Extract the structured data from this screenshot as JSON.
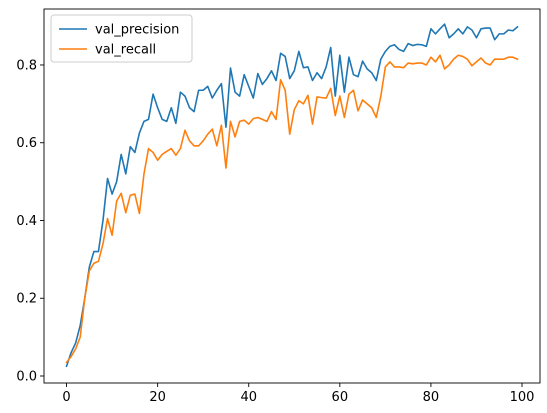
{
  "chart_data": {
    "type": "line",
    "title": "",
    "xlabel": "",
    "ylabel": "",
    "xlim": [
      -4.95,
      103.95
    ],
    "ylim": [
      -0.018,
      0.944
    ],
    "xticks": [
      0,
      20,
      40,
      60,
      80,
      100
    ],
    "yticks": [
      0.0,
      0.2,
      0.4,
      0.6,
      0.8
    ],
    "xtick_labels": [
      "0",
      "20",
      "40",
      "60",
      "80",
      "100"
    ],
    "ytick_labels": [
      "0.0",
      "0.2",
      "0.4",
      "0.6",
      "0.8"
    ],
    "grid": false,
    "legend_position": "upper-left",
    "x": [
      0,
      1,
      2,
      3,
      4,
      5,
      6,
      7,
      8,
      9,
      10,
      11,
      12,
      13,
      14,
      15,
      16,
      17,
      18,
      19,
      20,
      21,
      22,
      23,
      24,
      25,
      26,
      27,
      28,
      29,
      30,
      31,
      32,
      33,
      34,
      35,
      36,
      37,
      38,
      39,
      40,
      41,
      42,
      43,
      44,
      45,
      46,
      47,
      48,
      49,
      50,
      51,
      52,
      53,
      54,
      55,
      56,
      57,
      58,
      59,
      60,
      61,
      62,
      63,
      64,
      65,
      66,
      67,
      68,
      69,
      70,
      71,
      72,
      73,
      74,
      75,
      76,
      77,
      78,
      79,
      80,
      81,
      82,
      83,
      84,
      85,
      86,
      87,
      88,
      89,
      90,
      91,
      92,
      93,
      94,
      95,
      96,
      97,
      98,
      99
    ],
    "series": [
      {
        "name": "val_precision",
        "color": "#1f77b4",
        "values": [
          0.025,
          0.06,
          0.085,
          0.13,
          0.2,
          0.28,
          0.32,
          0.32,
          0.4,
          0.508,
          0.468,
          0.5,
          0.57,
          0.52,
          0.59,
          0.575,
          0.625,
          0.655,
          0.66,
          0.725,
          0.69,
          0.66,
          0.655,
          0.69,
          0.65,
          0.73,
          0.72,
          0.69,
          0.68,
          0.735,
          0.735,
          0.745,
          0.715,
          0.735,
          0.752,
          0.64,
          0.792,
          0.73,
          0.72,
          0.775,
          0.745,
          0.715,
          0.778,
          0.75,
          0.765,
          0.785,
          0.76,
          0.83,
          0.822,
          0.765,
          0.785,
          0.835,
          0.793,
          0.795,
          0.76,
          0.78,
          0.765,
          0.795,
          0.845,
          0.72,
          0.825,
          0.73,
          0.82,
          0.775,
          0.77,
          0.81,
          0.79,
          0.78,
          0.76,
          0.815,
          0.835,
          0.848,
          0.852,
          0.84,
          0.835,
          0.855,
          0.85,
          0.853,
          0.852,
          0.848,
          0.893,
          0.88,
          0.893,
          0.905,
          0.87,
          0.88,
          0.893,
          0.88,
          0.898,
          0.89,
          0.87,
          0.893,
          0.895,
          0.895,
          0.865,
          0.88,
          0.88,
          0.89,
          0.888,
          0.898
        ]
      },
      {
        "name": "val_recall",
        "color": "#ff7f0e",
        "values": [
          0.035,
          0.05,
          0.07,
          0.1,
          0.2,
          0.27,
          0.29,
          0.295,
          0.34,
          0.405,
          0.362,
          0.45,
          0.47,
          0.42,
          0.465,
          0.468,
          0.418,
          0.52,
          0.585,
          0.575,
          0.555,
          0.57,
          0.578,
          0.585,
          0.568,
          0.585,
          0.632,
          0.605,
          0.592,
          0.592,
          0.605,
          0.622,
          0.635,
          0.592,
          0.645,
          0.535,
          0.655,
          0.615,
          0.655,
          0.658,
          0.648,
          0.662,
          0.665,
          0.66,
          0.655,
          0.68,
          0.66,
          0.762,
          0.735,
          0.622,
          0.685,
          0.708,
          0.7,
          0.722,
          0.648,
          0.718,
          0.716,
          0.715,
          0.74,
          0.67,
          0.72,
          0.665,
          0.725,
          0.735,
          0.682,
          0.71,
          0.7,
          0.69,
          0.665,
          0.72,
          0.795,
          0.808,
          0.795,
          0.795,
          0.793,
          0.805,
          0.803,
          0.805,
          0.805,
          0.8,
          0.82,
          0.808,
          0.825,
          0.79,
          0.8,
          0.815,
          0.825,
          0.822,
          0.815,
          0.798,
          0.808,
          0.818,
          0.805,
          0.8,
          0.815,
          0.815,
          0.815,
          0.82,
          0.82,
          0.815
        ]
      }
    ]
  }
}
